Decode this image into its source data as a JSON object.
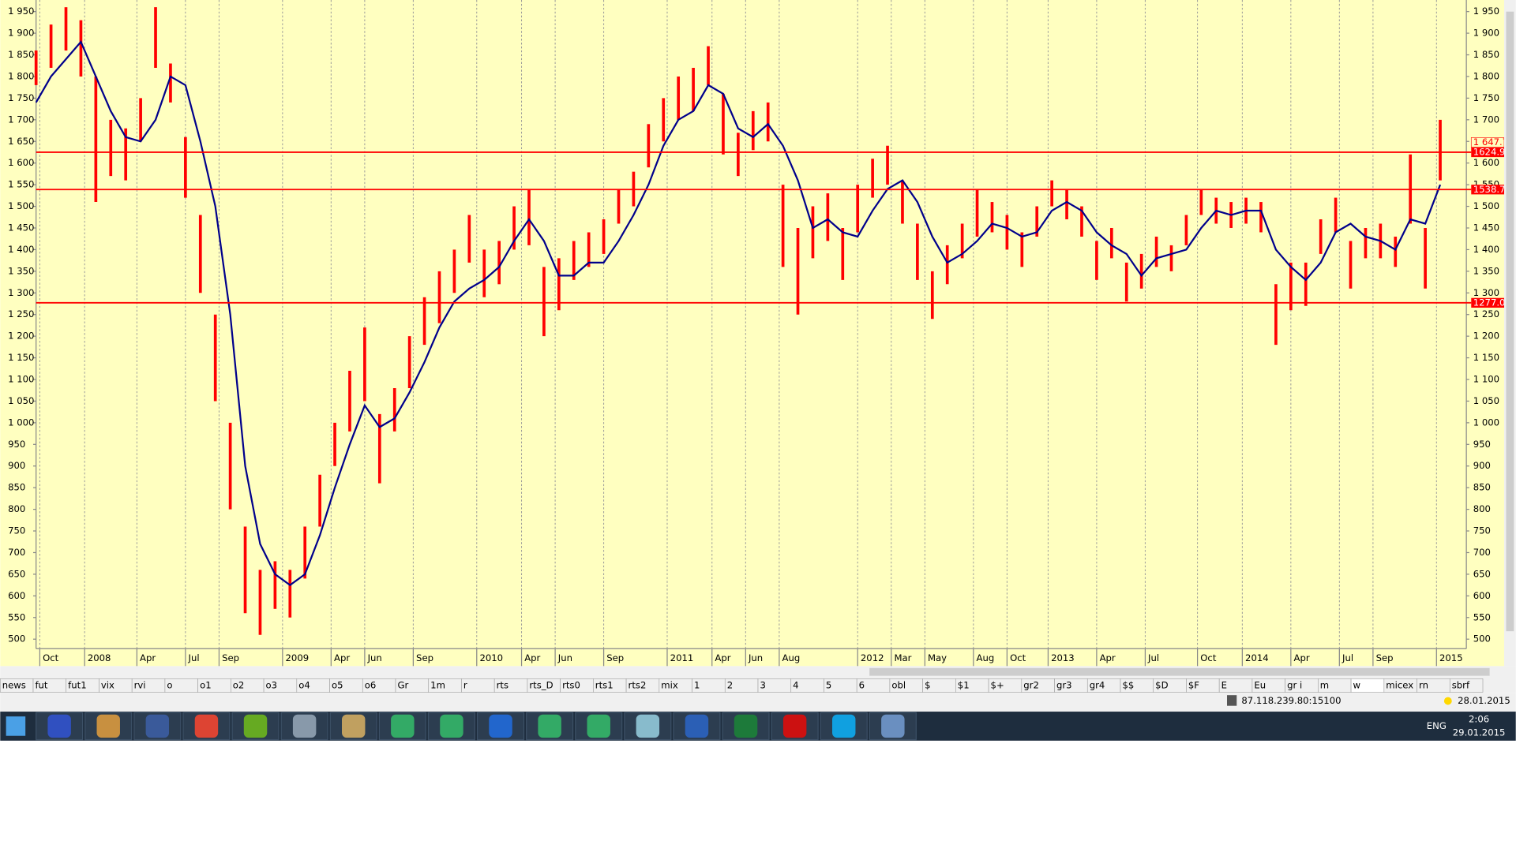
{
  "chart_data": {
    "type": "ohlc",
    "xlim": [
      0,
      383
    ],
    "xticks": [
      {
        "value": 1,
        "label": "Oct"
      },
      {
        "value": 13,
        "label": "2008"
      },
      {
        "value": 27,
        "label": "Apr"
      },
      {
        "value": 40,
        "label": "Jul"
      },
      {
        "value": 49,
        "label": "Sep"
      },
      {
        "value": 66,
        "label": "2009"
      },
      {
        "value": 79,
        "label": "Apr"
      },
      {
        "value": 88,
        "label": "Jun"
      },
      {
        "value": 101,
        "label": "Sep"
      },
      {
        "value": 118,
        "label": "2010"
      },
      {
        "value": 130,
        "label": "Apr"
      },
      {
        "value": 139,
        "label": "Jun"
      },
      {
        "value": 152,
        "label": "Sep"
      },
      {
        "value": 169,
        "label": "2011"
      },
      {
        "value": 181,
        "label": "Apr"
      },
      {
        "value": 190,
        "label": "Jun"
      },
      {
        "value": 199,
        "label": "Aug"
      },
      {
        "value": 220,
        "label": "2012"
      },
      {
        "value": 229,
        "label": "Mar"
      },
      {
        "value": 238,
        "label": "May"
      },
      {
        "value": 251,
        "label": "Aug"
      },
      {
        "value": 260,
        "label": "Oct"
      },
      {
        "value": 271,
        "label": "2013"
      },
      {
        "value": 284,
        "label": "Apr"
      },
      {
        "value": 297,
        "label": "Jul"
      },
      {
        "value": 311,
        "label": "Oct"
      },
      {
        "value": 323,
        "label": "2014"
      },
      {
        "value": 336,
        "label": "Apr"
      },
      {
        "value": 349,
        "label": "Jul"
      },
      {
        "value": 358,
        "label": "Sep"
      },
      {
        "value": 375,
        "label": "2015"
      }
    ],
    "ylim": [
      478,
      1970
    ],
    "yticks": [
      500,
      550,
      600,
      650,
      700,
      750,
      800,
      850,
      900,
      950,
      {
        "value": 1000,
        "label": "1 000"
      },
      {
        "value": 1050,
        "label": "1 050"
      },
      {
        "value": 1100,
        "label": "1 100"
      },
      {
        "value": 1150,
        "label": "1 150"
      },
      {
        "value": 1200,
        "label": "1 200"
      },
      {
        "value": 1250,
        "label": "1 250"
      },
      {
        "value": 1300,
        "label": "1 300"
      },
      {
        "value": 1350,
        "label": "1 350"
      },
      {
        "value": 1400,
        "label": "1 400"
      },
      {
        "value": 1450,
        "label": "1 450"
      },
      {
        "value": 1500,
        "label": "1 500"
      },
      {
        "value": 1550,
        "label": "1 550"
      },
      {
        "value": 1600,
        "label": "1 600"
      },
      {
        "value": 1650,
        "label": "1 650"
      },
      {
        "value": 1700,
        "label": "1 700"
      },
      {
        "value": 1750,
        "label": "1 750"
      },
      {
        "value": 1800,
        "label": "1 800"
      },
      {
        "value": 1850,
        "label": "1 850"
      },
      {
        "value": 1900,
        "label": "1 900"
      },
      {
        "value": 1950,
        "label": "1 950"
      }
    ],
    "grid": "x",
    "bars": {
      "color": "#ff0000",
      "x": [
        0,
        4,
        8,
        12,
        16,
        20,
        24,
        28,
        32,
        36,
        40,
        44,
        48,
        52,
        56,
        60,
        64,
        68,
        72,
        76,
        80,
        84,
        88,
        92,
        96,
        100,
        104,
        108,
        112,
        116,
        120,
        124,
        128,
        132,
        136,
        140,
        144,
        148,
        152,
        156,
        160,
        164,
        168,
        172,
        176,
        180,
        184,
        188,
        192,
        196,
        200,
        204,
        208,
        212,
        216,
        220,
        224,
        228,
        232,
        236,
        240,
        244,
        248,
        252,
        256,
        260,
        264,
        268,
        272,
        276,
        280,
        284,
        288,
        292,
        296,
        300,
        304,
        308,
        312,
        316,
        320,
        324,
        328,
        332,
        336,
        340,
        344,
        348,
        352,
        356,
        360,
        364,
        368,
        372,
        376
      ],
      "low": [
        1780,
        1820,
        1860,
        1800,
        1510,
        1570,
        1560,
        1650,
        1820,
        1740,
        1520,
        1300,
        1050,
        800,
        560,
        510,
        570,
        550,
        640,
        760,
        900,
        980,
        1050,
        860,
        980,
        1080,
        1180,
        1230,
        1300,
        1370,
        1290,
        1320,
        1400,
        1410,
        1200,
        1260,
        1330,
        1360,
        1390,
        1460,
        1500,
        1590,
        1650,
        1700,
        1720,
        1780,
        1620,
        1570,
        1630,
        1650,
        1360,
        1250,
        1380,
        1420,
        1330,
        1440,
        1520,
        1550,
        1460,
        1330,
        1240,
        1320,
        1380,
        1430,
        1440,
        1400,
        1360,
        1430,
        1500,
        1470,
        1430,
        1330,
        1380,
        1280,
        1310,
        1360,
        1350,
        1410,
        1480,
        1460,
        1450,
        1460,
        1440,
        1180,
        1260,
        1270,
        1390,
        1440,
        1310,
        1380,
        1380,
        1360,
        1460,
        1310,
        1560
      ],
      "high": [
        1860,
        1920,
        1960,
        1930,
        1800,
        1700,
        1680,
        1750,
        1960,
        1830,
        1660,
        1480,
        1250,
        1000,
        760,
        660,
        680,
        660,
        760,
        880,
        1000,
        1120,
        1220,
        1020,
        1080,
        1200,
        1290,
        1350,
        1400,
        1480,
        1400,
        1420,
        1500,
        1540,
        1360,
        1380,
        1420,
        1440,
        1470,
        1540,
        1580,
        1690,
        1750,
        1800,
        1820,
        1870,
        1760,
        1670,
        1720,
        1740,
        1550,
        1450,
        1500,
        1530,
        1450,
        1550,
        1610,
        1640,
        1560,
        1460,
        1350,
        1410,
        1460,
        1540,
        1510,
        1480,
        1440,
        1500,
        1560,
        1540,
        1500,
        1420,
        1450,
        1370,
        1390,
        1430,
        1410,
        1480,
        1540,
        1520,
        1510,
        1520,
        1510,
        1320,
        1370,
        1370,
        1470,
        1520,
        1420,
        1450,
        1460,
        1430,
        1620,
        1450,
        1700
      ]
    },
    "moving_average": {
      "color": "#00008b",
      "values": [
        1740,
        1800,
        1840,
        1880,
        1800,
        1720,
        1660,
        1650,
        1700,
        1800,
        1780,
        1650,
        1500,
        1250,
        900,
        720,
        650,
        625,
        650,
        740,
        850,
        950,
        1040,
        990,
        1010,
        1070,
        1140,
        1220,
        1280,
        1310,
        1330,
        1360,
        1420,
        1470,
        1420,
        1340,
        1340,
        1370,
        1370,
        1420,
        1480,
        1550,
        1640,
        1700,
        1720,
        1780,
        1760,
        1680,
        1660,
        1690,
        1640,
        1560,
        1450,
        1470,
        1440,
        1430,
        1490,
        1540,
        1560,
        1510,
        1430,
        1370,
        1390,
        1420,
        1460,
        1450,
        1430,
        1440,
        1490,
        1510,
        1490,
        1440,
        1410,
        1390,
        1340,
        1380,
        1390,
        1400,
        1450,
        1490,
        1480,
        1490,
        1490,
        1400,
        1360,
        1330,
        1370,
        1440,
        1460,
        1430,
        1420,
        1400,
        1470,
        1460,
        1550
      ]
    },
    "hlines": {
      "color": "#ff0000",
      "values": [
        1624.99,
        1538.79,
        1277.09
      ]
    },
    "last_price": {
      "value": 1647.71,
      "label": "1 647.71"
    }
  },
  "tabs": [
    "news",
    "fut",
    "fut1",
    "vix",
    "rvi",
    "o",
    "o1",
    "o2",
    "o3",
    "o4",
    "o5",
    "o6",
    "Gr",
    "1m",
    "r",
    "rts",
    "rts_D",
    "rts0",
    "rts1",
    "rts2",
    "mix",
    "1",
    "2",
    "3",
    "4",
    "5",
    "6",
    "obl",
    "$",
    "$1",
    "$+",
    "gr2",
    "gr3",
    "gr4",
    "$$",
    "$D",
    "$F",
    "E",
    "Eu",
    "gr i",
    "m",
    "w",
    "micex",
    "rn",
    "sbrf"
  ],
  "active_tab": 41,
  "status": {
    "server": "87.118.239.80:15100",
    "date": "28.01.2015"
  },
  "taskbar": {
    "language": "ENG",
    "time": "2:06",
    "date": "29.01.2015"
  }
}
